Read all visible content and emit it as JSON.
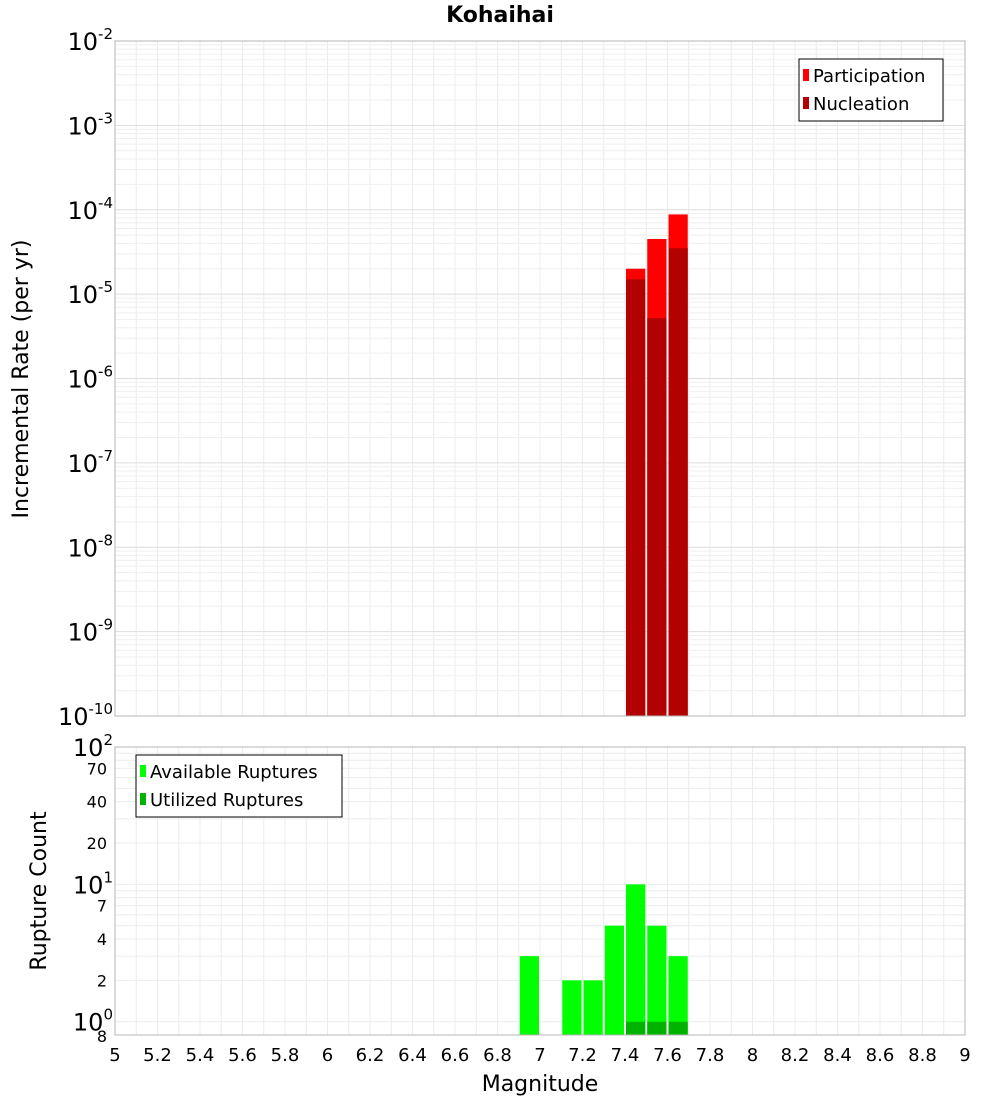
{
  "chart_data": [
    {
      "type": "bar",
      "title": "Kohaihai",
      "xlabel": "Magnitude",
      "ylabel": "Incremental Rate (per yr)",
      "yscale": "log",
      "ylim": [
        1e-10,
        0.01
      ],
      "xlim": [
        5,
        9
      ],
      "x_ticks": [
        "5",
        "5.2",
        "5.4",
        "5.6",
        "5.8",
        "6",
        "6.2",
        "6.4",
        "6.6",
        "6.8",
        "7",
        "7.2",
        "7.4",
        "7.6",
        "7.8",
        "8",
        "8.2",
        "8.4",
        "8.6",
        "8.8",
        "9"
      ],
      "grid": true,
      "legend_position": "top-right",
      "bar_width": 0.1,
      "series": [
        {
          "name": "Participation",
          "color": "#ff0000",
          "x": [
            7.45,
            7.55,
            7.65
          ],
          "values": [
            2e-05,
            4.5e-05,
            8.8e-05
          ]
        },
        {
          "name": "Nucleation",
          "color": "#b30000",
          "x": [
            7.45,
            7.55,
            7.65
          ],
          "values": [
            1.5e-05,
            5.2e-06,
            3.5e-05
          ]
        }
      ]
    },
    {
      "type": "bar",
      "xlabel": "Magnitude",
      "ylabel": "Rupture Count",
      "yscale": "log",
      "ylim": [
        0.8,
        100
      ],
      "xlim": [
        5,
        9
      ],
      "grid": true,
      "legend_position": "top-left",
      "bar_width": 0.1,
      "series": [
        {
          "name": "Available Ruptures",
          "color": "#00ff00",
          "x": [
            6.95,
            7.15,
            7.25,
            7.35,
            7.45,
            7.55,
            7.65
          ],
          "values": [
            3,
            2,
            2,
            5,
            10,
            5,
            3
          ]
        },
        {
          "name": "Utilized Ruptures",
          "color": "#00b300",
          "x": [
            7.45,
            7.55,
            7.65
          ],
          "values": [
            1,
            1,
            1
          ]
        }
      ]
    }
  ]
}
